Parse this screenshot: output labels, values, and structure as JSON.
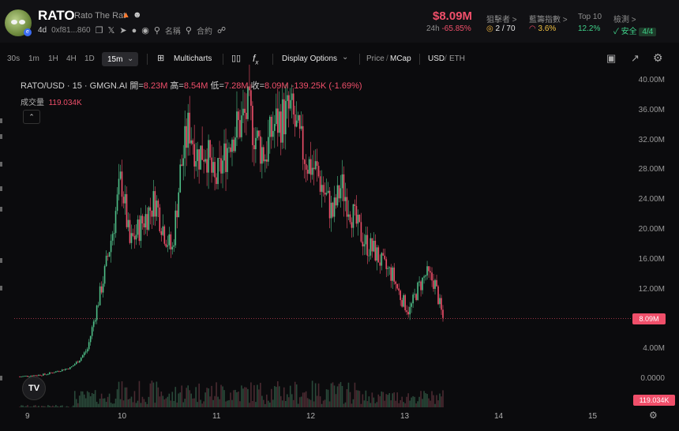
{
  "header": {
    "symbol": "RATO",
    "name": "Rato The Rat",
    "age": "4d",
    "address": "0xf81...860",
    "label_name": "名稱",
    "label_contract": "合約",
    "price": "$8.09M",
    "change_period": "24h",
    "change_value": "-65.85%",
    "stats": [
      {
        "label": "狙擊者 >",
        "value": "2 / 70"
      },
      {
        "label": "藍籌指數 >",
        "value": "3.6%"
      },
      {
        "label": "Top 10",
        "value": "12.2%"
      },
      {
        "label": "檢測 >",
        "value": "安全",
        "badge": "4/4"
      }
    ]
  },
  "toolbar": {
    "intervals": [
      "30s",
      "1m",
      "1H",
      "4H",
      "1D"
    ],
    "selected_interval": "15m",
    "multicharts": "Multicharts",
    "display_options": "Display Options",
    "price_label": "Price",
    "mcap_label": "MCap",
    "usd_label": "USD",
    "eth_label": "ETH"
  },
  "legend": {
    "pair": "RATO/USD · 15 · GMGN.AI",
    "open_label": "開=",
    "open": "8.23M",
    "high_label": "高=",
    "high": "8.54M",
    "low_label": "低=",
    "low": "7.28M",
    "close_label": "收=",
    "close": "8.09M",
    "change": "-139.25K (-1.69%)",
    "volume_label": "成交量",
    "volume": "119.034K"
  },
  "chart_data": {
    "type": "candlestick",
    "y_axis_labels": [
      "40.00M",
      "36.00M",
      "32.00M",
      "28.00M",
      "24.00M",
      "20.00M",
      "16.00M",
      "12.00M",
      "8.09M",
      "4.00M",
      "0.0000"
    ],
    "x_axis_labels": [
      "9",
      "10",
      "11",
      "12",
      "13",
      "14",
      "15"
    ],
    "last_price_label": "8.09M",
    "last_volume_label": "119.034K",
    "up_color": "#4fbf88",
    "down_color": "#f04f6a",
    "price_path_mcap_millions": [
      0.3,
      0.4,
      0.5,
      0.6,
      0.9,
      1.2,
      1.5,
      2.5,
      4,
      9,
      14,
      20,
      27,
      18,
      20,
      22,
      24,
      20,
      17,
      28,
      34,
      30,
      31,
      26,
      29,
      33,
      34,
      36,
      32,
      30,
      34,
      35,
      36,
      32,
      29,
      28,
      25,
      22,
      26,
      23,
      20,
      18,
      17,
      15,
      14,
      11,
      9,
      12,
      14,
      13,
      8.09
    ],
    "ylim": [
      0,
      40
    ]
  },
  "icons": {
    "camera": "camera-icon",
    "fullscreen": "fullscreen-icon",
    "settings": "gear-icon",
    "search": "search-icon",
    "share": "share-icon"
  },
  "colors": {
    "background": "#0b0b0d",
    "accent_red": "#f04f6a",
    "accent_green": "#3fd28a"
  }
}
